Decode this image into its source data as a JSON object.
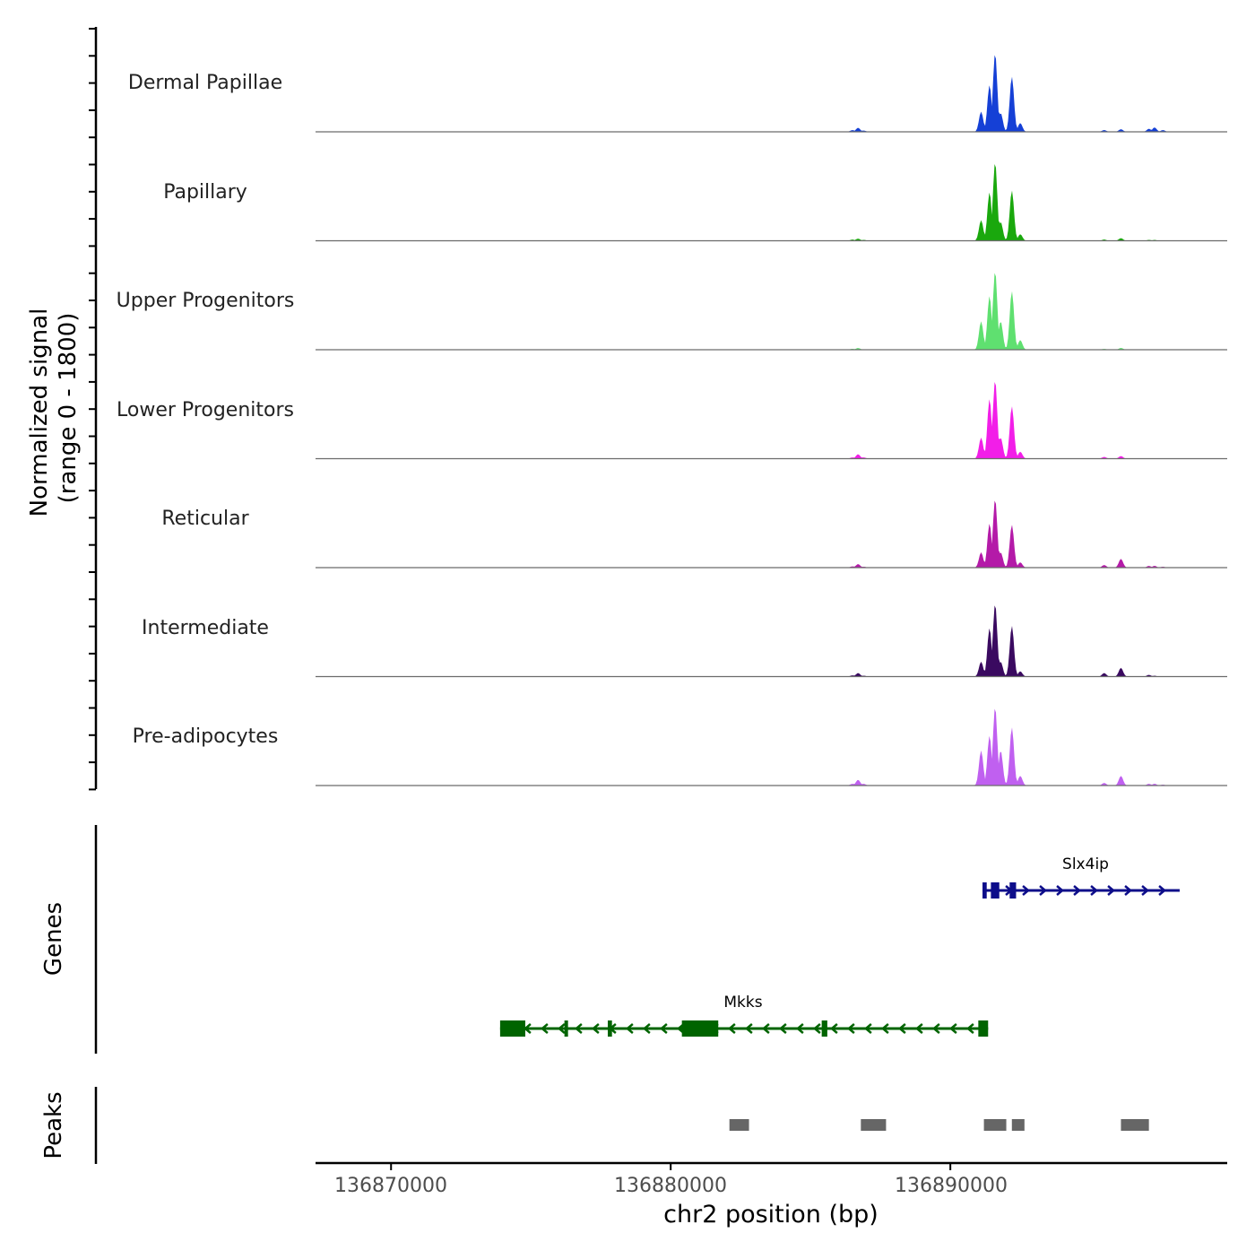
{
  "chart_data": {
    "type": "area",
    "title": "",
    "xlabel": "chr2 position (bp)",
    "ylabel_line1": "Normalized signal",
    "ylabel_line2": "(range 0 - 1800)",
    "y_range": [
      0,
      1800
    ],
    "chromosome": "chr2",
    "xlim": [
      136867300,
      136899900
    ],
    "x_ticks": [
      136870000,
      136880000,
      136890000
    ],
    "x_tick_labels": [
      "136870000",
      "136880000",
      "136890000"
    ],
    "signal_x": [
      136886500,
      136886700,
      136886900,
      136891100,
      136891400,
      136891600,
      136891800,
      136892200,
      136892500,
      136895500,
      136896100,
      136897100,
      136897300,
      136897600
    ],
    "series": [
      {
        "name": "Dermal Papillae",
        "color": "#1540d6",
        "values": [
          40,
          90,
          30,
          460,
          1070,
          1800,
          430,
          1260,
          200,
          40,
          60,
          70,
          100,
          40
        ]
      },
      {
        "name": "Papillary",
        "color": "#1aa80d",
        "values": [
          30,
          50,
          20,
          470,
          1110,
          1800,
          430,
          1150,
          150,
          30,
          60,
          20,
          20,
          10
        ]
      },
      {
        "name": "Upper Progenitors",
        "color": "#5fe070",
        "values": [
          20,
          40,
          10,
          650,
          1230,
          1800,
          650,
          1340,
          220,
          20,
          40,
          10,
          10,
          10
        ]
      },
      {
        "name": "Lower Progenitors",
        "color": "#f21ee8",
        "values": [
          30,
          100,
          30,
          480,
          1370,
          1800,
          480,
          1200,
          160,
          40,
          60,
          10,
          10,
          10
        ]
      },
      {
        "name": "Reticular",
        "color": "#b41aa8",
        "values": [
          30,
          80,
          20,
          350,
          1010,
          1570,
          350,
          980,
          120,
          60,
          200,
          40,
          40,
          20
        ]
      },
      {
        "name": "Intermediate",
        "color": "#3a0a60",
        "values": [
          30,
          80,
          20,
          340,
          1110,
          1670,
          340,
          1160,
          120,
          80,
          200,
          40,
          20,
          10
        ]
      },
      {
        "name": "Pre-adipocytes",
        "color": "#c060f0",
        "values": [
          40,
          130,
          40,
          800,
          1140,
          1800,
          800,
          1330,
          220,
          60,
          220,
          40,
          40,
          20
        ]
      }
    ],
    "panels": [
      {
        "label": "Normalized signal"
      },
      {
        "label": "Genes"
      },
      {
        "label": "Peaks"
      }
    ],
    "genes": [
      {
        "name": "Slx4ip",
        "start": 136891150,
        "end": 136898200,
        "strand": "+",
        "color": "#0d0d8a",
        "exons": [
          [
            136891150,
            136891300
          ],
          [
            136891450,
            136891750
          ],
          [
            136892120,
            136892350
          ]
        ]
      },
      {
        "name": "Mkks",
        "start": 136873900,
        "end": 136891350,
        "strand": "-",
        "color": "#006400",
        "exons": [
          [
            136873900,
            136874800
          ],
          [
            136876200,
            136876300
          ],
          [
            136877750,
            136877900
          ],
          [
            136880400,
            136881700
          ],
          [
            136885400,
            136885600
          ],
          [
            136891000,
            136891350
          ]
        ]
      }
    ],
    "peaks": [
      [
        136882100,
        136882800
      ],
      [
        136886800,
        136887700
      ],
      [
        136891200,
        136892000
      ],
      [
        136892200,
        136892650
      ],
      [
        136896100,
        136897100
      ]
    ]
  }
}
